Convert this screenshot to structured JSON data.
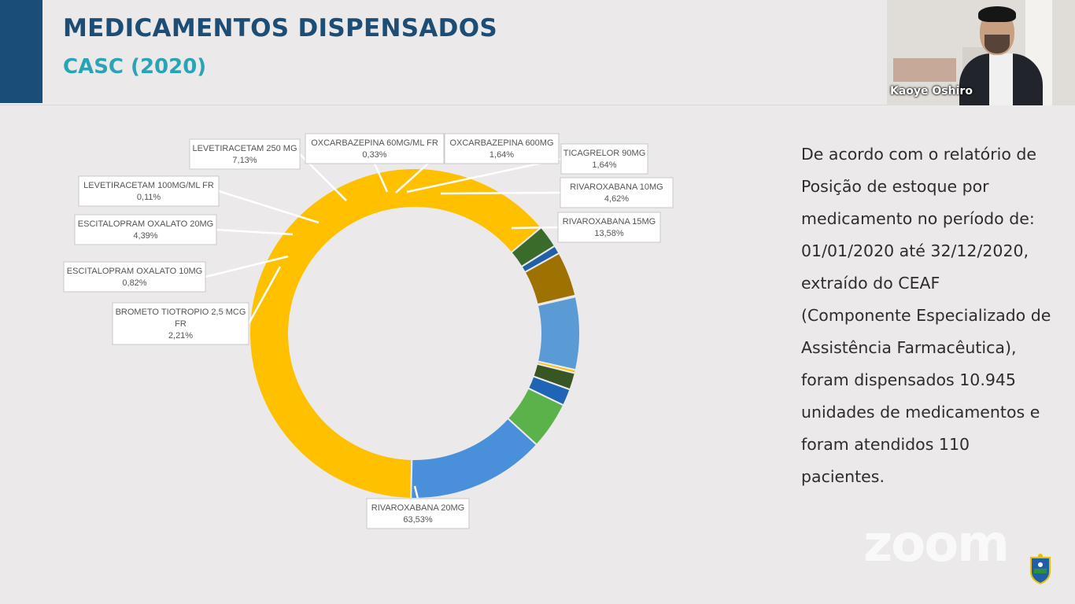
{
  "slide": {
    "title": "MEDICAMENTOS DISPENSADOS",
    "subtitle": "CASC (2020)",
    "description": "De acordo com o relatório de Posição de estoque por medicamento no período de: 01/01/2020 até 32/12/2020, extraído do CEAF (Componente Especializado de Assistência Farmacêutica), foram dispensados 10.945 unidades de medicamentos e foram atendidos 110 pacientes.",
    "description_lines": [
      "De acordo com o relatório de",
      "Posição de estoque por",
      "medicamento no período de:",
      "01/01/2020 até 32/12/2020,",
      "extraído do CEAF",
      "(Componente Especializado de",
      "Assistência Farmacêutica),",
      "foram dispensados 10.945",
      "unidades de medicamentos e",
      "foram atendidos 110",
      "pacientes."
    ]
  },
  "video": {
    "participant_name": "Kaoye Oshiro"
  },
  "overlay": {
    "zoom_logo": "zoom",
    "emblem_icon": "state-emblem-icon"
  },
  "colors": {
    "title": "#1d4d74",
    "subtitle": "#2aa3b5",
    "accent_bar": "#1b4d79"
  },
  "chart_data": {
    "type": "pie",
    "donut": true,
    "legend": "none",
    "series": [
      {
        "name": "RIVAROXABANA 20MG",
        "value": 63.53,
        "label": "63,53%",
        "color": "#ffc000"
      },
      {
        "name": "BROMETO TIOTROPIO 2,5 MCG FR",
        "value": 2.21,
        "label": "2,21%",
        "color": "#3b6b2a"
      },
      {
        "name": "ESCITALOPRAM OXALATO 10MG",
        "value": 0.82,
        "label": "0,82%",
        "color": "#245ea6"
      },
      {
        "name": "ESCITALOPRAM OXALATO 20MG",
        "value": 4.39,
        "label": "4,39%",
        "color": "#9e7200"
      },
      {
        "name": "LEVETIRACETAM 100MG/ML FR",
        "value": 0.11,
        "label": "0,11%",
        "color": "#5a5a5a"
      },
      {
        "name": "LEVETIRACETAM 250 MG",
        "value": 7.13,
        "label": "7,13%",
        "color": "#5b9bd5"
      },
      {
        "name": "OXCARBAZEPINA 60MG/ML FR",
        "value": 0.33,
        "label": "0,33%",
        "color": "#ffc000"
      },
      {
        "name": "OXCARBAZEPINA 600MG",
        "value": 1.64,
        "label": "1,64%",
        "color": "#375623"
      },
      {
        "name": "TICAGRELOR 90MG",
        "value": 1.64,
        "label": "1,64%",
        "color": "#1f64b5"
      },
      {
        "name": "RIVAROXABANA 10MG",
        "value": 4.62,
        "label": "4,62%",
        "color": "#5cb24a"
      },
      {
        "name": "RIVAROXABANA 15MG",
        "value": 13.58,
        "label": "13,58%",
        "color": "#4a8fda"
      }
    ]
  }
}
